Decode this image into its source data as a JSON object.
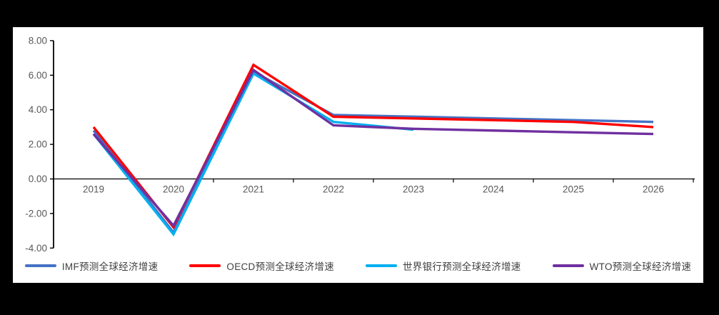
{
  "canvas": {
    "background": "#000000",
    "panel_background": "#ffffff"
  },
  "axis": {
    "label_color": "#595959",
    "line_color": "#000000",
    "ytick_values": [
      8,
      6,
      4,
      2,
      0,
      -2,
      -4
    ],
    "ytick_labels": [
      "8.00",
      "6.00",
      "4.00",
      "2.00",
      "0.00",
      "-2.00",
      "-4.00"
    ]
  },
  "chart_data": {
    "type": "line",
    "title": "",
    "xlabel": "",
    "ylabel": "",
    "categories": [
      "2019",
      "2020",
      "2021",
      "2022",
      "2023",
      "2024",
      "2025",
      "2026"
    ],
    "ylim": [
      -4,
      8
    ],
    "ytick_step": 2,
    "grid": false,
    "legend_position": "bottom",
    "series": [
      {
        "name": "IMF预测全球经济增速",
        "color": "#4472C4",
        "values": [
          2.8,
          -3.1,
          6.2,
          3.7,
          3.6,
          3.5,
          3.4,
          3.3
        ]
      },
      {
        "name": "OECD预测全球经济增速",
        "color": "#FF0000",
        "values": [
          3.0,
          -2.8,
          6.6,
          3.6,
          3.5,
          3.4,
          3.3,
          3.0
        ]
      },
      {
        "name": "世界银行预测全球经济增速",
        "color": "#00B0F0",
        "values": [
          2.6,
          -3.2,
          6.1,
          3.3,
          2.85,
          null,
          null,
          null
        ]
      },
      {
        "name": "WTO预测全球经济增速",
        "color": "#7030A0",
        "values": [
          2.6,
          -2.7,
          6.3,
          3.1,
          2.9,
          2.8,
          2.7,
          2.6
        ]
      }
    ]
  }
}
